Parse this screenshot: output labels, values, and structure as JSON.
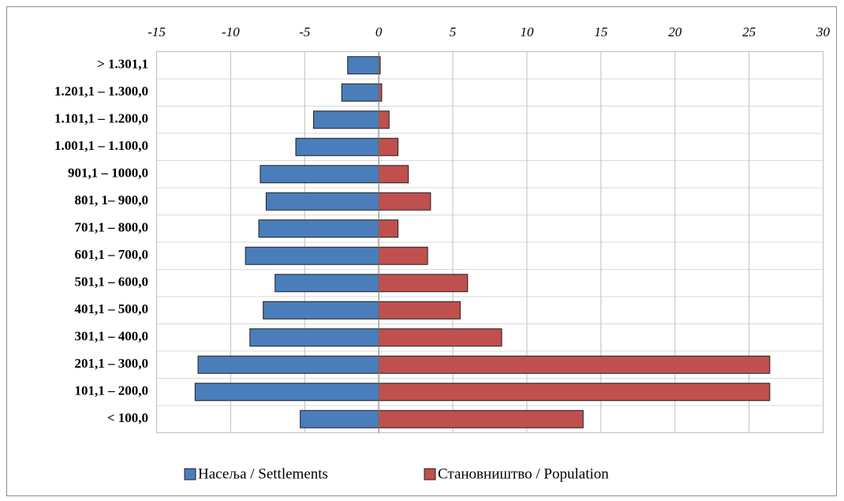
{
  "chart_data": {
    "type": "diverging-bar",
    "categories": [
      "> 1.301,1",
      "1.201,1 – 1.300,0",
      "1.101,1 – 1.200,0",
      "1.001,1 – 1.100,0",
      "901,1 – 1000,0",
      "801, 1– 900,0",
      "701,1 – 800,0",
      "601,1 – 700,0",
      "501,1 – 600,0",
      "401,1 – 500,0",
      "301,1 – 400,0",
      "201,1 – 300,0",
      "101,1 – 200,0",
      "< 100,0"
    ],
    "series": [
      {
        "name": "Насеља / Settlements",
        "color": "#4a7ebb",
        "values": [
          -2.1,
          -2.5,
          -4.4,
          -5.6,
          -8.0,
          -7.6,
          -8.1,
          -9.0,
          -7.0,
          -7.8,
          -8.7,
          -12.2,
          -12.4,
          -5.3
        ]
      },
      {
        "name": "Становништво / Population",
        "color": "#c0504d",
        "values": [
          0.1,
          0.2,
          0.7,
          1.3,
          2.0,
          3.5,
          1.3,
          3.3,
          6.0,
          5.5,
          8.3,
          26.4,
          26.4,
          13.8
        ]
      }
    ],
    "xlim": [
      -15,
      30
    ],
    "xticks": [
      -15,
      -10,
      -5,
      0,
      5,
      10,
      15,
      20,
      25,
      30
    ],
    "grid": true
  }
}
